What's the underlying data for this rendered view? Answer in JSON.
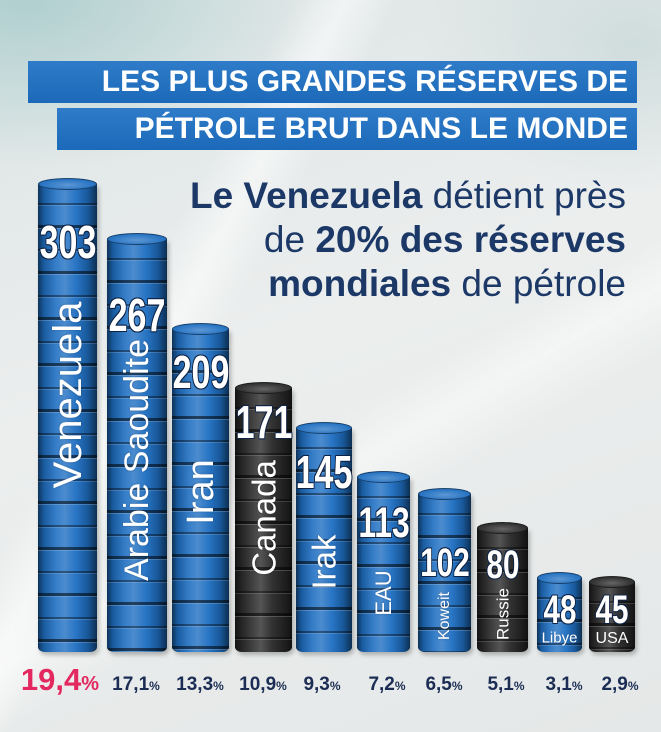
{
  "colors": {
    "page_background": "#e8ecec",
    "banner": "#1d70c4",
    "banner_text": "#ffffff",
    "subtitle_text": "#1c3866",
    "share_text": "#1b2d54",
    "highlight": "#e3285f",
    "barrel_blue": "#1f6fc2",
    "barrel_black": "#2a2a2a"
  },
  "chart_data": {
    "type": "bar",
    "title_lines": [
      "LES PLUS GRANDES RÉSERVES DE",
      "PÉTROLE BRUT DANS LE MONDE"
    ],
    "subtitle": {
      "line1_strong": "Le Venezuela",
      "line1_rest": " détient près",
      "line2_lead": "de ",
      "line2_strong": "20% des réserves",
      "line3_strong": "mondiales",
      "line3_rest": " de pétrole"
    },
    "categories": [
      "Venezuela",
      "Arabie Saoudite",
      "Iran",
      "Canada",
      "Irak",
      "EAU",
      "Koweit",
      "Russie",
      "Libye",
      "USA"
    ],
    "values": [
      303,
      267,
      209,
      171,
      145,
      113,
      102,
      80,
      48,
      45
    ],
    "shares": [
      "19,4%",
      "17,1%",
      "13,3%",
      "10,9%",
      "9,3%",
      "7,2%",
      "6,5%",
      "5,1%",
      "3,1%",
      "2,9%"
    ],
    "bar_colors": [
      "#1f6fc2",
      "#1f6fc2",
      "#1f6fc2",
      "#2a2a2a",
      "#1f6fc2",
      "#1f6fc2",
      "#1f6fc2",
      "#2a2a2a",
      "#1f6fc2",
      "#2a2a2a"
    ],
    "share_colors": [
      "#e3285f",
      "#1b2d54",
      "#1b2d54",
      "#1b2d54",
      "#1b2d54",
      "#1b2d54",
      "#1b2d54",
      "#1b2d54",
      "#1b2d54",
      "#1b2d54"
    ],
    "ylim": [
      0,
      303
    ],
    "grid": false,
    "legend": "none"
  }
}
